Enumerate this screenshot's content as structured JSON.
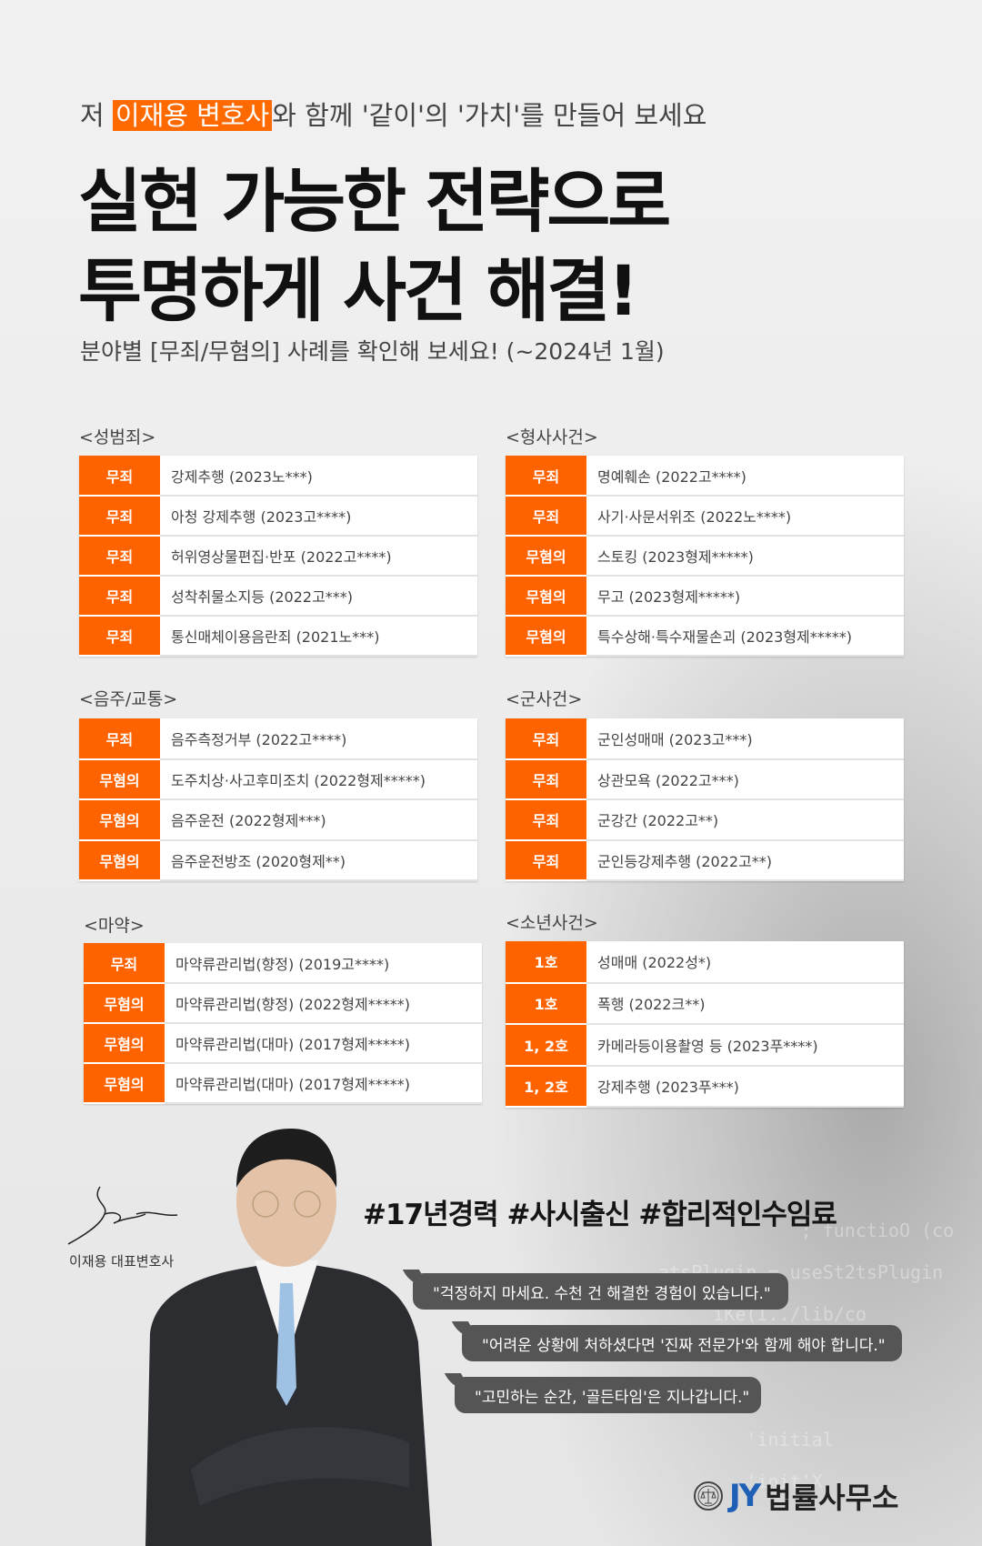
{
  "header": {
    "lead_prefix": "저 ",
    "lead_highlight": "이재용 변호사",
    "lead_suffix": "와 함께 '같이'의 '가치'를 만들어 보세요",
    "title_line1": "실현 가능한 전략으로",
    "title_line2": "투명하게 사건 해결!",
    "subtitle": "분야별 [무죄/무혐의] 사례를 확인해 보세요! (~2024년 1월)"
  },
  "accent": "#ff6300",
  "sections": [
    {
      "label": "<성범죄>",
      "rows": [
        [
          "무죄",
          "강제추행 (2023노***)"
        ],
        [
          "무죄",
          "아청 강제추행 (2023고****)"
        ],
        [
          "무죄",
          "허위영상물편집·반포 (2022고****)"
        ],
        [
          "무죄",
          "성착취물소지등 (2022고***)"
        ],
        [
          "무죄",
          "통신매체이용음란죄 (2021노***)"
        ]
      ]
    },
    {
      "label": "<형사사건>",
      "rows": [
        [
          "무죄",
          "명예훼손 (2022고****)"
        ],
        [
          "무죄",
          "사기·사문서위조 (2022노****)"
        ],
        [
          "무혐의",
          "스토킹 (2023형제*****)"
        ],
        [
          "무혐의",
          "무고 (2023형제*****)"
        ],
        [
          "무혐의",
          "특수상해·특수재물손괴 (2023형제*****)"
        ]
      ]
    },
    {
      "label": "<음주/교통>",
      "rows": [
        [
          "무죄",
          "음주측정거부 (2022고****)"
        ],
        [
          "무혐의",
          "도주치상·사고후미조치 (2022형제*****)"
        ],
        [
          "무혐의",
          "음주운전 (2022형제***)"
        ],
        [
          "무혐의",
          "음주운전방조  (2020형제**)"
        ]
      ]
    },
    {
      "label": "<군사건>",
      "rows": [
        [
          "무죄",
          "군인성매매 (2023고***)"
        ],
        [
          "무죄",
          "상관모욕 (2022고***)"
        ],
        [
          "무죄",
          "군강간 (2022고**)"
        ],
        [
          "무죄",
          "군인등강제추행 (2022고**)"
        ]
      ]
    },
    {
      "label": "<마약>",
      "rows": [
        [
          "무죄",
          "마약류관리법(향정) (2019고****)"
        ],
        [
          "무혐의",
          "마약류관리법(향정) (2022형제*****)"
        ],
        [
          "무혐의",
          "마약류관리법(대마) (2017형제*****)"
        ],
        [
          "무혐의",
          "마약류관리법(대마) (2017형제*****)"
        ]
      ]
    },
    {
      "label": "<소년사건>",
      "rows": [
        [
          "1호",
          "성매매  (2022성*)"
        ],
        [
          "1호",
          "폭행 (2022크**)"
        ],
        [
          "1, 2호",
          "카메라등이용촬영 등 (2023푸****)"
        ],
        [
          "1, 2호",
          "강제추행 (2023푸***)"
        ]
      ]
    }
  ],
  "profile": {
    "signature_name": "이재용 대표변호사",
    "hashtags": "#17년경력 #사시출신 #합리적인수임료",
    "quotes": [
      "\"걱정하지 마세요. 수천 건 해결한 경험이 있습니다.\"",
      "\"어려운 상황에 처하셨다면 '진짜 전문가'와 함께 해야 합니다.\"",
      "\"고민하는 순간, '골든타임'은 지나갑니다.\""
    ]
  },
  "logo": {
    "mark": "JY",
    "name": "법률사무소"
  }
}
